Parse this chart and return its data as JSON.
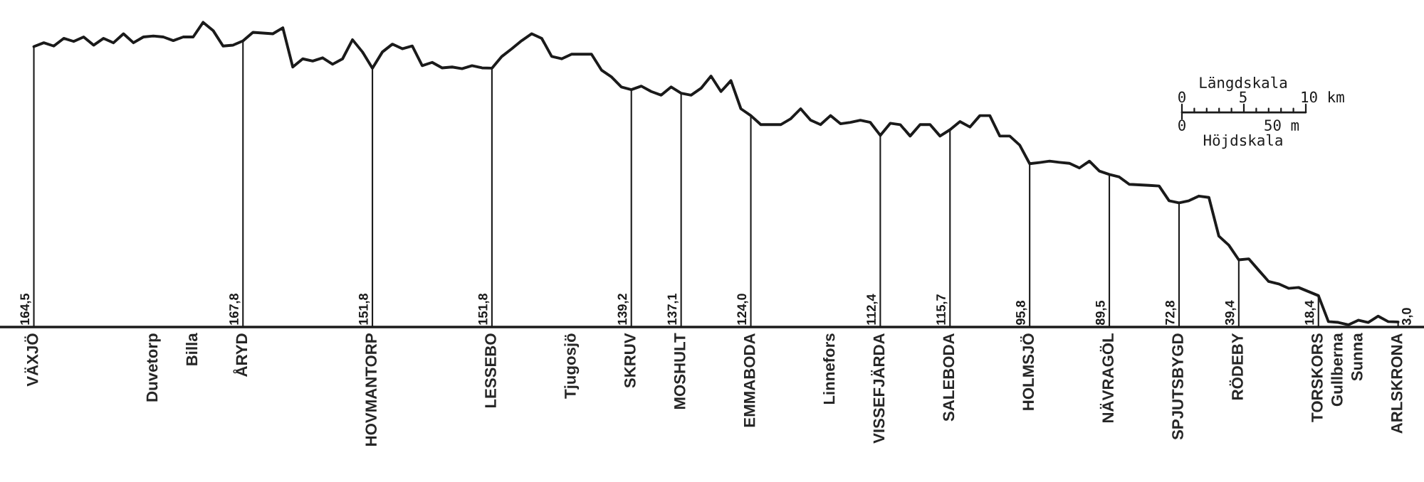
{
  "chart_data": {
    "type": "line",
    "tick_labels": "x",
    "grid": false,
    "legend": false,
    "categories": [
      "VÄXJÖ",
      null,
      null,
      null,
      null,
      null,
      null,
      null,
      null,
      null,
      null,
      null,
      "Duvetorp",
      null,
      null,
      null,
      "Billa",
      null,
      null,
      null,
      null,
      "ÅRYD",
      null,
      null,
      null,
      null,
      null,
      null,
      null,
      null,
      null,
      null,
      null,
      null,
      "HOVMANTORP",
      null,
      null,
      null,
      null,
      null,
      null,
      null,
      null,
      null,
      null,
      null,
      "LESSEBO",
      null,
      null,
      null,
      null,
      null,
      null,
      null,
      "Tjugosjö",
      null,
      null,
      null,
      null,
      null,
      "SKRUV",
      null,
      null,
      null,
      null,
      "MOSHULT",
      null,
      null,
      null,
      null,
      null,
      null,
      "EMMABODA",
      null,
      null,
      null,
      null,
      null,
      null,
      null,
      "Linnefors",
      null,
      null,
      null,
      null,
      "VISSEFJÄRDA",
      null,
      null,
      null,
      null,
      null,
      null,
      "SALEBODA",
      null,
      null,
      null,
      null,
      null,
      null,
      null,
      "HOLMSJÖ",
      null,
      null,
      null,
      null,
      null,
      null,
      null,
      "NÄVRAGÖL",
      null,
      null,
      null,
      null,
      null,
      null,
      "SPJUTSBYGD",
      null,
      null,
      null,
      null,
      null,
      "RÖDEBY",
      null,
      null,
      null,
      null,
      null,
      null,
      null,
      "TORSKORS",
      null,
      "Gullberna",
      null,
      "Sunna",
      null,
      null,
      null,
      "ARLSKRONA"
    ],
    "series": [
      {
        "color": "#1a1a1a",
        "values": [
          164.5,
          166.7,
          164.8,
          169.3,
          167.5,
          170.1,
          165.3,
          169.3,
          166.7,
          172,
          166.7,
          170.1,
          170.7,
          170.1,
          168,
          170.1,
          170.1,
          178.7,
          173.9,
          164.8,
          165.3,
          167.8,
          172.8,
          172.4,
          172,
          175.5,
          152.5,
          157.3,
          156,
          157.9,
          154.1,
          157.3,
          168.5,
          161.3,
          151.8,
          161.3,
          165.9,
          163.2,
          164.8,
          153.3,
          155.2,
          152,
          152.5,
          151.5,
          153.3,
          152,
          151.8,
          158.7,
          163.2,
          168,
          172,
          169.3,
          158.7,
          157.3,
          160,
          160,
          160,
          150.7,
          146.7,
          140.8,
          139.2,
          141.3,
          138.1,
          136,
          140.8,
          137.1,
          136,
          140,
          147.2,
          138.1,
          144.5,
          128,
          124.0,
          118.7,
          118.7,
          118.7,
          122.1,
          128,
          121.3,
          118.7,
          124,
          119.2,
          120,
          121.3,
          120,
          112.4,
          119.5,
          118.7,
          112,
          118.7,
          118.7,
          112,
          115.7,
          120.5,
          117.3,
          124,
          124,
          112,
          112,
          106.7,
          95.8,
          96.5,
          97.3,
          96.6,
          96,
          93.3,
          97.3,
          91.5,
          89.5,
          88,
          83.7,
          83.4,
          83.1,
          82.7,
          74.1,
          72.8,
          74.1,
          76.8,
          76,
          53.3,
          48,
          39.4,
          40,
          33.3,
          26.7,
          25.3,
          22.7,
          23.2,
          20.8,
          18.4,
          3.2,
          2.7,
          1.3,
          4,
          2.7,
          6.4,
          3.2,
          3.0
        ]
      },
      {
        "type": "bar",
        "color": "#1a1a1a",
        "values": [
          164.5,
          null,
          null,
          null,
          null,
          null,
          null,
          null,
          null,
          null,
          null,
          null,
          null,
          null,
          null,
          null,
          null,
          null,
          null,
          null,
          null,
          167.8,
          null,
          null,
          null,
          null,
          null,
          null,
          null,
          null,
          null,
          null,
          null,
          null,
          151.8,
          null,
          null,
          null,
          null,
          null,
          null,
          null,
          null,
          null,
          null,
          null,
          151.8,
          null,
          null,
          null,
          null,
          null,
          null,
          null,
          null,
          null,
          null,
          null,
          null,
          null,
          139.2,
          null,
          null,
          null,
          null,
          137.1,
          null,
          null,
          null,
          null,
          null,
          null,
          124.0,
          null,
          null,
          null,
          null,
          null,
          null,
          null,
          null,
          null,
          null,
          null,
          null,
          112.4,
          null,
          null,
          null,
          null,
          null,
          null,
          115.7,
          null,
          null,
          null,
          null,
          null,
          null,
          null,
          95.8,
          null,
          null,
          null,
          null,
          null,
          null,
          null,
          89.5,
          null,
          null,
          null,
          null,
          null,
          null,
          72.8,
          null,
          null,
          null,
          null,
          null,
          39.4,
          null,
          null,
          null,
          null,
          null,
          null,
          null,
          18.4,
          null,
          null,
          null,
          null,
          null,
          null,
          null,
          3.0
        ],
        "value_labels": [
          "164,5",
          null,
          null,
          null,
          null,
          null,
          null,
          null,
          null,
          null,
          null,
          null,
          null,
          null,
          null,
          null,
          null,
          null,
          null,
          null,
          null,
          "167,8",
          null,
          null,
          null,
          null,
          null,
          null,
          null,
          null,
          null,
          null,
          null,
          null,
          "151,8",
          null,
          null,
          null,
          null,
          null,
          null,
          null,
          null,
          null,
          null,
          null,
          "151,8",
          null,
          null,
          null,
          null,
          null,
          null,
          null,
          null,
          null,
          null,
          null,
          null,
          null,
          "139,2",
          null,
          null,
          null,
          null,
          "137,1",
          null,
          null,
          null,
          null,
          null,
          null,
          "124,0",
          null,
          null,
          null,
          null,
          null,
          null,
          null,
          null,
          null,
          null,
          null,
          null,
          "112,4",
          null,
          null,
          null,
          null,
          null,
          null,
          "115,7",
          null,
          null,
          null,
          null,
          null,
          null,
          null,
          "95,8",
          null,
          null,
          null,
          null,
          null,
          null,
          null,
          "89,5",
          null,
          null,
          null,
          null,
          null,
          null,
          "72,8",
          null,
          null,
          null,
          null,
          null,
          "39,4",
          null,
          null,
          null,
          null,
          null,
          null,
          null,
          "18,4",
          null,
          null,
          null,
          null,
          null,
          null,
          null,
          "3,0"
        ]
      }
    ],
    "annotations": [
      "Längdskala",
      "0",
      "5",
      "10 km",
      "0",
      "50 m",
      "Höjdskala"
    ]
  }
}
